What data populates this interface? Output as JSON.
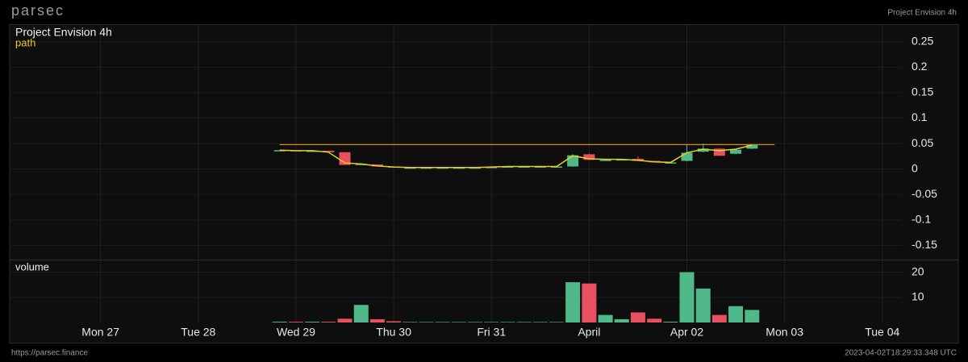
{
  "header": {
    "brand": "parsec",
    "title": "Project Envision 4h"
  },
  "footer": {
    "url": "https://parsec.finance",
    "timestamp": "2023-04-02T18:29:33.348 UTC"
  },
  "chart_data": [
    {
      "type": "candlestick",
      "title": "Project Envision 4h",
      "x": [
        1.833,
        2.0,
        2.167,
        2.333,
        2.5,
        2.667,
        2.833,
        3.0,
        3.167,
        3.333,
        3.5,
        3.667,
        3.833,
        4.0,
        4.167,
        4.333,
        4.5,
        4.667,
        4.833,
        5.0,
        5.167,
        5.333,
        5.5,
        5.667,
        5.833,
        6.0,
        6.167,
        6.333,
        6.5,
        6.667
      ],
      "open": [
        0.037,
        0.037,
        0.036,
        0.036,
        0.033,
        0.01,
        0.009,
        0.005,
        0.003,
        0.003,
        0.003,
        0.003,
        0.003,
        0.003,
        0.005,
        0.005,
        0.005,
        0.005,
        0.005,
        0.029,
        0.018,
        0.019,
        0.02,
        0.016,
        0.012,
        0.016,
        0.034,
        0.04,
        0.03,
        0.04
      ],
      "high": [
        0.037,
        0.037,
        0.036,
        0.036,
        0.033,
        0.011,
        0.009,
        0.005,
        0.004,
        0.004,
        0.004,
        0.004,
        0.004,
        0.005,
        0.005,
        0.006,
        0.006,
        0.006,
        0.029,
        0.03,
        0.019,
        0.02,
        0.025,
        0.016,
        0.014,
        0.048,
        0.05,
        0.041,
        0.039,
        0.048
      ],
      "low": [
        0.037,
        0.036,
        0.035,
        0.034,
        0.008,
        0.009,
        0.005,
        0.003,
        0.002,
        0.002,
        0.002,
        0.002,
        0.002,
        0.002,
        0.004,
        0.004,
        0.004,
        0.004,
        0.004,
        0.018,
        0.017,
        0.018,
        0.016,
        0.013,
        0.012,
        0.015,
        0.033,
        0.026,
        0.029,
        0.039
      ],
      "close": [
        0.037,
        0.036,
        0.036,
        0.033,
        0.008,
        0.01,
        0.005,
        0.003,
        0.003,
        0.003,
        0.003,
        0.003,
        0.003,
        0.004,
        0.005,
        0.005,
        0.005,
        0.005,
        0.027,
        0.018,
        0.018,
        0.019,
        0.016,
        0.013,
        0.013,
        0.032,
        0.04,
        0.026,
        0.038,
        0.047
      ],
      "up_color": "#4fb98a",
      "down_color": "#e8505f",
      "series": [
        {
          "name": "path",
          "color": "#e8d020",
          "values": [
            0.037,
            0.036,
            0.036,
            0.033,
            0.012,
            0.01,
            0.006,
            0.004,
            0.003,
            0.003,
            0.003,
            0.003,
            0.003,
            0.004,
            0.005,
            0.005,
            0.005,
            0.005,
            0.026,
            0.02,
            0.019,
            0.019,
            0.017,
            0.014,
            0.013,
            0.032,
            0.039,
            0.036,
            0.039,
            0.047
          ]
        }
      ],
      "hline": {
        "value": 0.048,
        "color": "#d08a1f"
      },
      "xlim": [
        -0.93,
        8.2
      ],
      "ylim": [
        -0.178,
        0.283
      ],
      "yticks": [
        0.25,
        0.2,
        0.15,
        0.1,
        0.05,
        0,
        -0.05,
        -0.1,
        -0.15
      ],
      "grid": true
    },
    {
      "type": "bar",
      "title": "volume",
      "x": [
        1.833,
        2.0,
        2.167,
        2.333,
        2.5,
        2.667,
        2.833,
        3.0,
        3.167,
        3.333,
        3.5,
        3.667,
        3.833,
        4.0,
        4.167,
        4.333,
        4.5,
        4.667,
        4.833,
        5.0,
        5.167,
        5.333,
        5.5,
        5.667,
        5.833,
        6.0,
        6.167,
        6.333,
        6.5,
        6.667
      ],
      "values": [
        0.3,
        0.3,
        0.3,
        0.3,
        1.5,
        7,
        1.3,
        0.5,
        0.2,
        0.2,
        0.2,
        0.2,
        0.2,
        0.2,
        0.2,
        0.2,
        0.2,
        0.2,
        16,
        15.5,
        3,
        1.3,
        4,
        1.5,
        0.3,
        20,
        13.5,
        3,
        6.5,
        5
      ],
      "xlim": [
        -0.93,
        8.2
      ],
      "ylim": [
        0,
        25
      ],
      "yticks": [
        20,
        10
      ],
      "xticks": [
        {
          "value": 0,
          "label": "Mon 27"
        },
        {
          "value": 1,
          "label": "Tue 28"
        },
        {
          "value": 2,
          "label": "Wed 29"
        },
        {
          "value": 3,
          "label": "Thu 30"
        },
        {
          "value": 4,
          "label": "Fri 31"
        },
        {
          "value": 5,
          "label": "April"
        },
        {
          "value": 6,
          "label": "Apr 02"
        },
        {
          "value": 7,
          "label": "Mon 03"
        },
        {
          "value": 8,
          "label": "Tue 04"
        }
      ],
      "grid": true
    }
  ]
}
